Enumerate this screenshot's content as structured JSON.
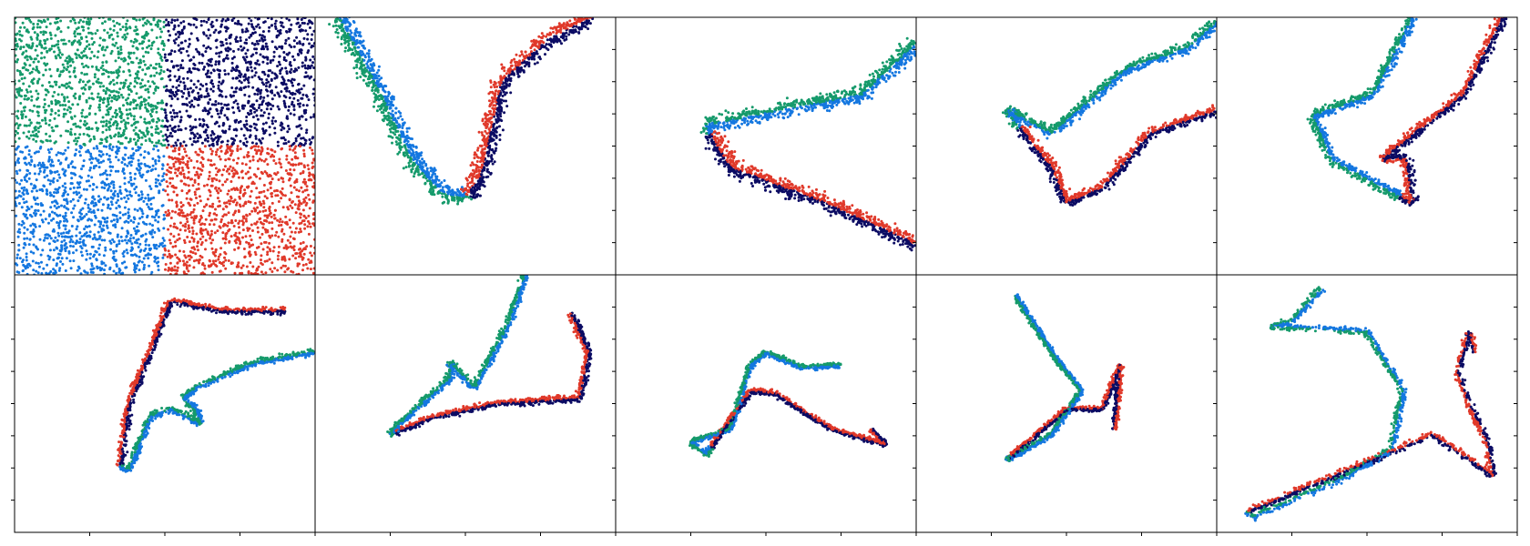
{
  "chart_data": {
    "type": "scatter",
    "layout": {
      "rows": 2,
      "cols": 5
    },
    "xlabel": "",
    "ylabel": "",
    "legend": "none",
    "grid": false,
    "colors": {
      "green": "#159a6b",
      "navy": "#0b0b63",
      "blue": "#1477e0",
      "red": "#e0392a"
    },
    "series": [
      {
        "color": "green"
      },
      {
        "color": "navy"
      },
      {
        "color": "blue"
      },
      {
        "color": "red"
      }
    ],
    "panels": [
      {
        "kind": "quadrants"
      },
      {
        "kind": "band",
        "path": [
          [
            0.08,
            0.0
          ],
          [
            0.14,
            0.12
          ],
          [
            0.22,
            0.3
          ],
          [
            0.32,
            0.55
          ],
          [
            0.42,
            0.68
          ],
          [
            0.5,
            0.7
          ],
          [
            0.55,
            0.62
          ],
          [
            0.62,
            0.25
          ],
          [
            0.78,
            0.08
          ],
          [
            0.92,
            0.0
          ]
        ],
        "width": 0.05
      },
      {
        "kind": "band",
        "path": [
          [
            1.0,
            0.1
          ],
          [
            0.82,
            0.3
          ],
          [
            0.55,
            0.36
          ],
          [
            0.3,
            0.42
          ],
          [
            0.38,
            0.58
          ],
          [
            0.7,
            0.72
          ],
          [
            1.0,
            0.88
          ]
        ],
        "width": 0.045
      },
      {
        "kind": "band",
        "path": [
          [
            1.0,
            0.02
          ],
          [
            0.9,
            0.12
          ],
          [
            0.7,
            0.2
          ],
          [
            0.45,
            0.45
          ],
          [
            0.3,
            0.36
          ],
          [
            0.45,
            0.58
          ],
          [
            0.5,
            0.72
          ],
          [
            0.62,
            0.66
          ],
          [
            0.78,
            0.45
          ],
          [
            1.0,
            0.36
          ]
        ],
        "width": 0.03
      },
      {
        "kind": "band",
        "path": [
          [
            0.65,
            0.0
          ],
          [
            0.52,
            0.3
          ],
          [
            0.32,
            0.38
          ],
          [
            0.38,
            0.55
          ],
          [
            0.55,
            0.66
          ],
          [
            0.65,
            0.72
          ],
          [
            0.63,
            0.55
          ],
          [
            0.55,
            0.55
          ],
          [
            0.82,
            0.3
          ],
          [
            0.95,
            0.0
          ]
        ],
        "width": 0.028
      },
      {
        "kind": "band",
        "path": [
          [
            1.0,
            0.3
          ],
          [
            0.8,
            0.34
          ],
          [
            0.6,
            0.44
          ],
          [
            0.56,
            0.48
          ],
          [
            0.6,
            0.52
          ],
          [
            0.62,
            0.58
          ],
          [
            0.52,
            0.52
          ],
          [
            0.45,
            0.55
          ],
          [
            0.38,
            0.76
          ],
          [
            0.35,
            0.74
          ],
          [
            0.38,
            0.5
          ],
          [
            0.52,
            0.1
          ],
          [
            0.7,
            0.14
          ],
          [
            0.9,
            0.14
          ]
        ],
        "width": 0.02
      },
      {
        "kind": "band",
        "path": [
          [
            0.7,
            0.0
          ],
          [
            0.64,
            0.2
          ],
          [
            0.53,
            0.44
          ],
          [
            0.45,
            0.34
          ],
          [
            0.45,
            0.4
          ],
          [
            0.28,
            0.58
          ],
          [
            0.25,
            0.62
          ],
          [
            0.4,
            0.55
          ],
          [
            0.6,
            0.5
          ],
          [
            0.88,
            0.48
          ],
          [
            0.91,
            0.3
          ],
          [
            0.85,
            0.15
          ]
        ],
        "width": 0.02
      },
      {
        "kind": "band",
        "path": [
          [
            0.75,
            0.35
          ],
          [
            0.62,
            0.36
          ],
          [
            0.5,
            0.3
          ],
          [
            0.45,
            0.35
          ],
          [
            0.38,
            0.6
          ],
          [
            0.25,
            0.65
          ],
          [
            0.3,
            0.7
          ],
          [
            0.45,
            0.45
          ],
          [
            0.53,
            0.46
          ],
          [
            0.72,
            0.6
          ],
          [
            0.9,
            0.66
          ],
          [
            0.85,
            0.6
          ]
        ],
        "width": 0.015
      },
      {
        "kind": "band",
        "path": [
          [
            0.33,
            0.08
          ],
          [
            0.45,
            0.3
          ],
          [
            0.55,
            0.45
          ],
          [
            0.45,
            0.62
          ],
          [
            0.3,
            0.72
          ],
          [
            0.3,
            0.72
          ],
          [
            0.5,
            0.52
          ],
          [
            0.62,
            0.52
          ],
          [
            0.68,
            0.35
          ],
          [
            0.66,
            0.6
          ]
        ],
        "width": 0.015
      },
      {
        "kind": "band",
        "path": [
          [
            0.35,
            0.05
          ],
          [
            0.25,
            0.18
          ],
          [
            0.18,
            0.2
          ],
          [
            0.5,
            0.22
          ],
          [
            0.62,
            0.45
          ],
          [
            0.58,
            0.68
          ],
          [
            0.4,
            0.8
          ],
          [
            0.12,
            0.94
          ],
          [
            0.1,
            0.92
          ],
          [
            0.35,
            0.8
          ],
          [
            0.72,
            0.62
          ],
          [
            0.82,
            0.7
          ],
          [
            0.92,
            0.78
          ],
          [
            0.9,
            0.65
          ],
          [
            0.84,
            0.5
          ],
          [
            0.8,
            0.38
          ],
          [
            0.84,
            0.22
          ],
          [
            0.86,
            0.3
          ]
        ],
        "width": 0.02
      }
    ]
  }
}
